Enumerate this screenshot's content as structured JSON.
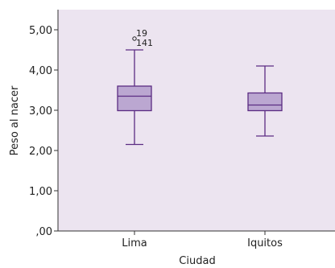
{
  "chart_data": {
    "type": "boxplot",
    "xlabel": "Ciudad",
    "ylabel": "Peso al nacer",
    "ylim": [
      0,
      5.5
    ],
    "yticks": [
      0,
      1,
      2,
      3,
      4,
      5
    ],
    "ytick_labels": [
      ",00",
      "1,00",
      "2,00",
      "3,00",
      "4,00",
      "5,00"
    ],
    "categories": [
      "Lima",
      "Iquitos"
    ],
    "boxes": [
      {
        "category": "Lima",
        "min": 2.15,
        "q1": 2.99,
        "median": 3.35,
        "q3": 3.6,
        "max": 4.5,
        "outliers": [
          {
            "value": 4.78,
            "labels": [
              "19",
              "141"
            ]
          }
        ]
      },
      {
        "category": "Iquitos",
        "min": 2.36,
        "q1": 2.99,
        "median": 3.13,
        "q3": 3.43,
        "max": 4.1,
        "outliers": []
      }
    ],
    "grid": false,
    "colors": {
      "background": "#ece4f0",
      "box_fill": "#bba7d1",
      "stroke": "#5b2c83",
      "axis": "#333333"
    }
  }
}
